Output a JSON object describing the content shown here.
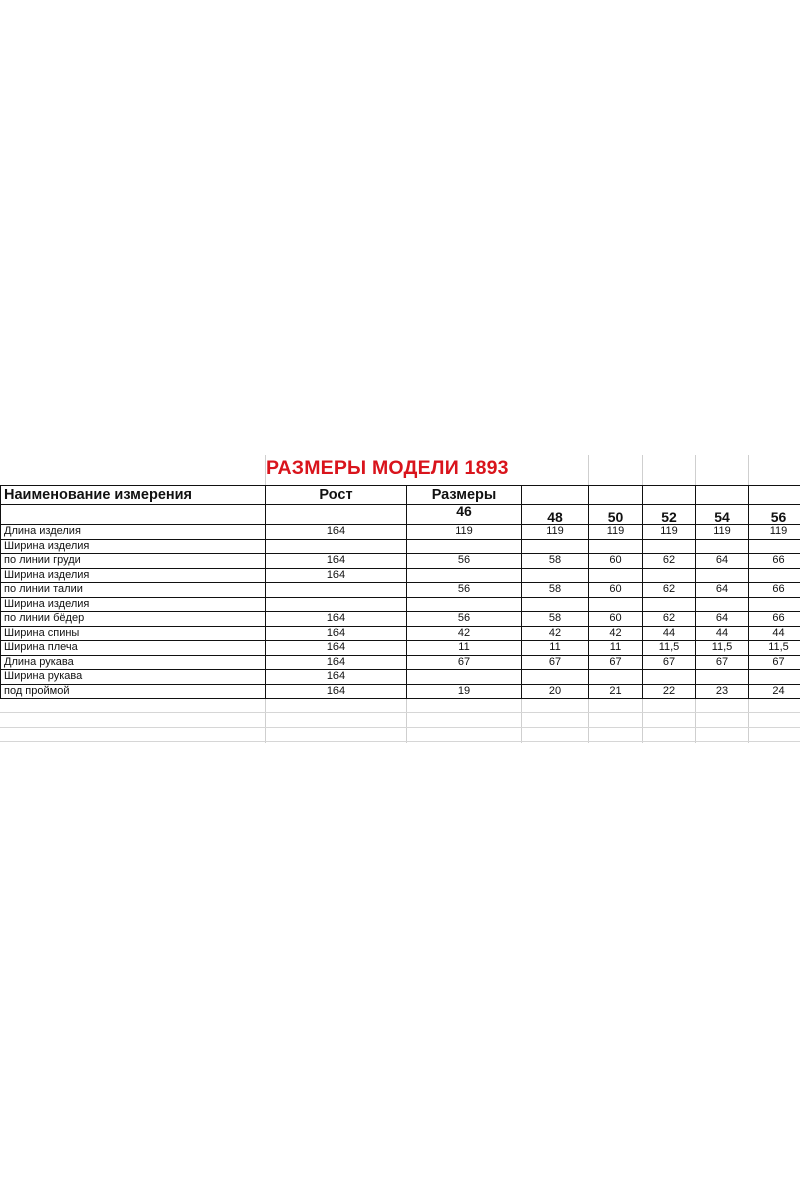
{
  "title": "РАЗМЕРЫ МОДЕЛИ 1893",
  "header": {
    "name": "Наименование измерения",
    "height": "Рост",
    "sizes": "Размеры"
  },
  "sizes": [
    "46",
    "48",
    "50",
    "52",
    "54",
    "56"
  ],
  "rows": [
    {
      "name": "Длина изделия",
      "height": "164",
      "values": [
        "119",
        "119",
        "119",
        "119",
        "119",
        "119"
      ]
    },
    {
      "name": "Ширина изделия",
      "height": "",
      "values": [
        "",
        "",
        "",
        "",
        "",
        ""
      ]
    },
    {
      "name": "по линии груди",
      "height": "164",
      "values": [
        "56",
        "58",
        "60",
        "62",
        "64",
        "66"
      ]
    },
    {
      "name": "Ширина изделия",
      "height": "164",
      "values": [
        "",
        "",
        "",
        "",
        "",
        ""
      ]
    },
    {
      "name": "по линии талии",
      "height": "",
      "values": [
        "56",
        "58",
        "60",
        "62",
        "64",
        "66"
      ]
    },
    {
      "name": "Ширина изделия",
      "height": "",
      "values": [
        "",
        "",
        "",
        "",
        "",
        ""
      ]
    },
    {
      "name": "по линии бёдер",
      "height": "164",
      "values": [
        "56",
        "58",
        "60",
        "62",
        "64",
        "66"
      ]
    },
    {
      "name": "Ширина спины",
      "height": "164",
      "values": [
        "42",
        "42",
        "42",
        "44",
        "44",
        "44"
      ]
    },
    {
      "name": "Ширина плеча",
      "height": "164",
      "values": [
        "11",
        "11",
        "11",
        "11,5",
        "11,5",
        "11,5"
      ]
    },
    {
      "name": "Длина рукава",
      "height": "164",
      "values": [
        "67",
        "67",
        "67",
        "67",
        "67",
        "67"
      ]
    },
    {
      "name": "Ширина рукава",
      "height": "164",
      "values": [
        "",
        "",
        "",
        "",
        "",
        ""
      ]
    },
    {
      "name": "под проймой",
      "height": "164",
      "values": [
        "19",
        "20",
        "21",
        "22",
        "23",
        "24"
      ]
    }
  ]
}
